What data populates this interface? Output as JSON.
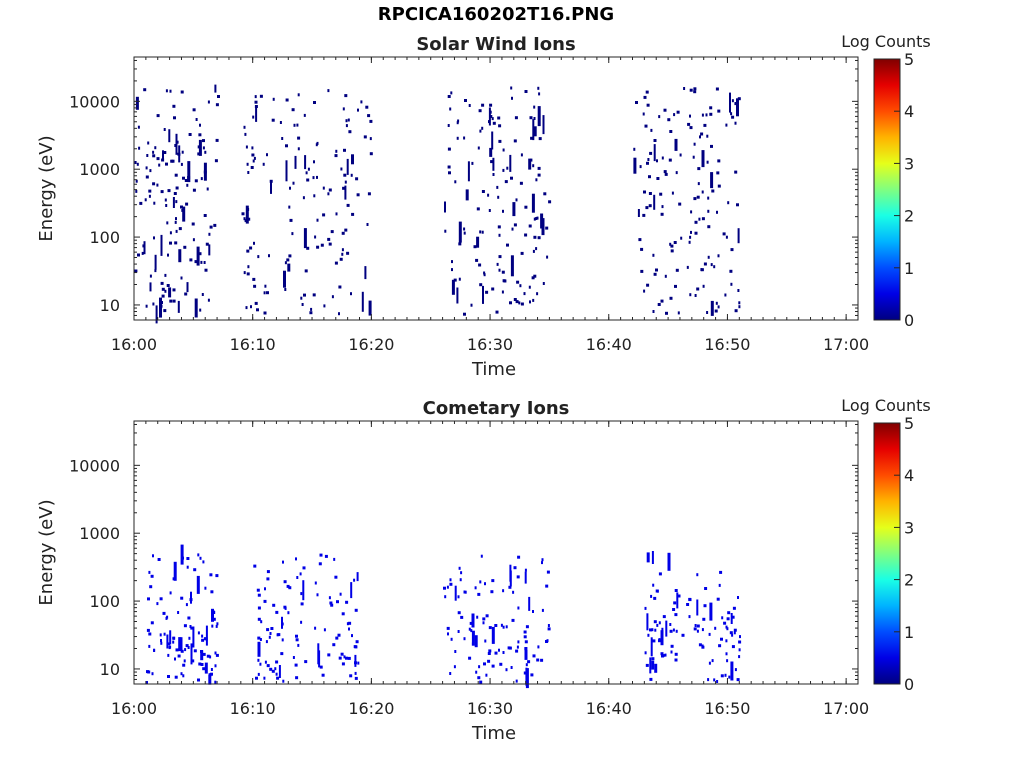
{
  "page_title": "RPCICA160202T16.PNG",
  "colorbar": {
    "label": "Log Counts",
    "ticks": [
      "0",
      "1",
      "2",
      "3",
      "4",
      "5"
    ],
    "range": [
      0,
      5
    ]
  },
  "chart_data": [
    {
      "type": "heatmap",
      "title": "Solar Wind Ions",
      "xlabel": "Time",
      "ylabel": "Energy (eV)",
      "x_ticks": [
        "16:00",
        "16:10",
        "16:20",
        "16:30",
        "16:40",
        "16:50",
        "17:00"
      ],
      "xlim": [
        "16:00",
        "17:01"
      ],
      "y_scale": "log",
      "y_ticks": [
        "10",
        "100",
        "1000",
        "10000"
      ],
      "ylim": [
        6,
        45000
      ],
      "colormap": "jet",
      "value": "Log Counts",
      "value_range": [
        0,
        5
      ],
      "activity_intervals": [
        {
          "start": "16:00",
          "end": "16:07",
          "log_counts": 0
        },
        {
          "start": "16:09",
          "end": "16:20",
          "log_counts": 0
        },
        {
          "start": "16:26",
          "end": "16:35",
          "log_counts": 0
        },
        {
          "start": "16:42",
          "end": "16:51",
          "log_counts": 0
        }
      ]
    },
    {
      "type": "heatmap",
      "title": "Cometary Ions",
      "xlabel": "Time",
      "ylabel": "Energy (eV)",
      "x_ticks": [
        "16:00",
        "16:10",
        "16:20",
        "16:30",
        "16:40",
        "16:50",
        "17:00"
      ],
      "xlim": [
        "16:00",
        "17:01"
      ],
      "y_scale": "log",
      "y_ticks": [
        "10",
        "100",
        "1000",
        "10000"
      ],
      "ylim": [
        6,
        45000
      ],
      "colormap": "jet",
      "value": "Log Counts",
      "value_range": [
        0,
        5
      ],
      "activity_intervals": [
        {
          "start": "16:01",
          "end": "16:07",
          "log_counts": 0.5
        },
        {
          "start": "16:10",
          "end": "16:19",
          "log_counts": 0.5
        },
        {
          "start": "16:26",
          "end": "16:35",
          "log_counts": 0.5
        },
        {
          "start": "16:43",
          "end": "16:51",
          "log_counts": 0.5
        }
      ]
    }
  ]
}
